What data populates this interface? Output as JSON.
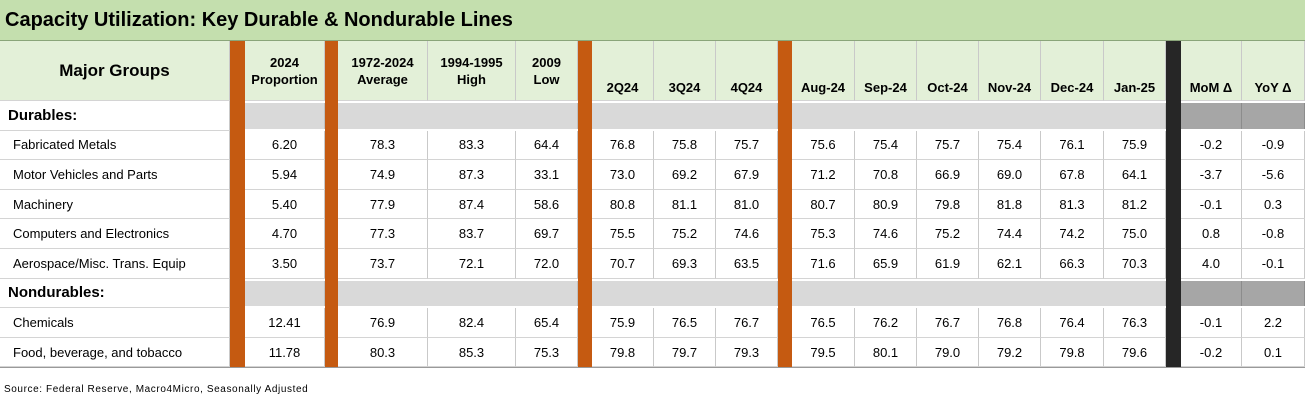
{
  "chart_data": {
    "type": "table",
    "title": "Capacity Utilization: Key Durable & Nondurable Lines",
    "row_header": "Major Groups",
    "columns": [
      "2024 Proportion",
      "1972-2024 Average",
      "1994-1995 High",
      "2009 Low",
      "2Q24",
      "3Q24",
      "4Q24",
      "Aug-24",
      "Sep-24",
      "Oct-24",
      "Nov-24",
      "Dec-24",
      "Jan-25",
      "MoM Δ",
      "YoY Δ"
    ],
    "column_headers": [
      [
        "2024",
        "Proportion"
      ],
      [
        "1972-2024",
        "Average"
      ],
      [
        "1994-1995",
        "High"
      ],
      [
        "2009",
        "Low"
      ],
      [
        "2Q24"
      ],
      [
        "3Q24"
      ],
      [
        "4Q24"
      ],
      [
        "Aug-24"
      ],
      [
        "Sep-24"
      ],
      [
        "Oct-24"
      ],
      [
        "Nov-24"
      ],
      [
        "Dec-24"
      ],
      [
        "Jan-25"
      ],
      [
        "MoM Δ"
      ],
      [
        "YoY Δ"
      ]
    ],
    "sections": [
      {
        "name": "Durables:",
        "rows": [
          {
            "label": "Fabricated Metals",
            "values": [
              "6.20",
              "78.3",
              "83.3",
              "64.4",
              "76.8",
              "75.8",
              "75.7",
              "75.6",
              "75.4",
              "75.7",
              "75.4",
              "76.1",
              "75.9",
              "-0.2",
              "-0.9"
            ]
          },
          {
            "label": "Motor Vehicles and Parts",
            "values": [
              "5.94",
              "74.9",
              "87.3",
              "33.1",
              "73.0",
              "69.2",
              "67.9",
              "71.2",
              "70.8",
              "66.9",
              "69.0",
              "67.8",
              "64.1",
              "-3.7",
              "-5.6"
            ]
          },
          {
            "label": "Machinery",
            "values": [
              "5.40",
              "77.9",
              "87.4",
              "58.6",
              "80.8",
              "81.1",
              "81.0",
              "80.7",
              "80.9",
              "79.8",
              "81.8",
              "81.3",
              "81.2",
              "-0.1",
              "0.3"
            ]
          },
          {
            "label": "Computers and Electronics",
            "values": [
              "4.70",
              "77.3",
              "83.7",
              "69.7",
              "75.5",
              "75.2",
              "74.6",
              "75.3",
              "74.6",
              "75.2",
              "74.4",
              "74.2",
              "75.0",
              "0.8",
              "-0.8"
            ]
          },
          {
            "label": "Aerospace/Misc. Trans. Equip",
            "values": [
              "3.50",
              "73.7",
              "72.1",
              "72.0",
              "70.7",
              "69.3",
              "63.5",
              "71.6",
              "65.9",
              "61.9",
              "62.1",
              "66.3",
              "70.3",
              "4.0",
              "-0.1"
            ]
          }
        ]
      },
      {
        "name": "Nondurables:",
        "rows": [
          {
            "label": "Chemicals",
            "values": [
              "12.41",
              "76.9",
              "82.4",
              "65.4",
              "75.9",
              "76.5",
              "76.7",
              "76.5",
              "76.2",
              "76.7",
              "76.8",
              "76.4",
              "76.3",
              "-0.1",
              "2.2"
            ]
          },
          {
            "label": "Food, beverage, and tobacco",
            "values": [
              "11.78",
              "80.3",
              "85.3",
              "75.3",
              "79.8",
              "79.7",
              "79.3",
              "79.5",
              "80.1",
              "79.0",
              "79.2",
              "79.8",
              "79.6",
              "-0.2",
              "0.1"
            ]
          }
        ]
      }
    ],
    "source": "Source: Federal Reserve, Macro4Micro, Seasonally Adjusted",
    "colors": {
      "title_bg": "#c4dfae",
      "header_bg": "#e3f0d8",
      "separator": "#c55a11",
      "dark_separator": "#262626",
      "section_gray": "#d9d9d9",
      "section_gray_dark": "#a6a6a6"
    }
  }
}
